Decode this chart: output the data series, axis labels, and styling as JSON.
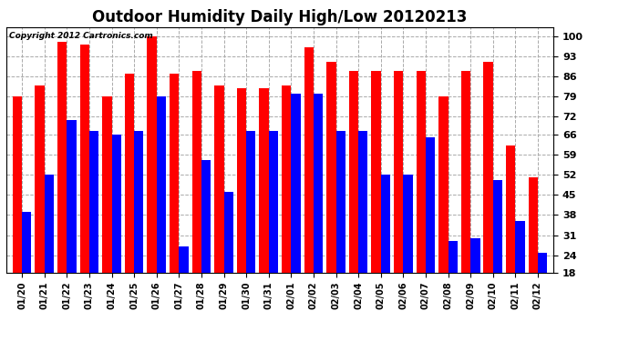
{
  "title": "Outdoor Humidity Daily High/Low 20120213",
  "copyright_text": "Copyright 2012 Cartronics.com",
  "categories": [
    "01/20",
    "01/21",
    "01/22",
    "01/23",
    "01/24",
    "01/25",
    "01/26",
    "01/27",
    "01/28",
    "01/29",
    "01/30",
    "01/31",
    "02/01",
    "02/02",
    "02/03",
    "02/04",
    "02/05",
    "02/06",
    "02/07",
    "02/08",
    "02/09",
    "02/10",
    "02/11",
    "02/12"
  ],
  "highs": [
    79,
    83,
    98,
    97,
    79,
    87,
    100,
    87,
    88,
    83,
    82,
    82,
    83,
    96,
    91,
    88,
    88,
    88,
    88,
    79,
    88,
    91,
    62,
    51
  ],
  "lows": [
    39,
    52,
    71,
    67,
    66,
    67,
    79,
    27,
    57,
    46,
    67,
    67,
    80,
    80,
    67,
    67,
    52,
    52,
    65,
    29,
    30,
    50,
    36,
    25
  ],
  "high_color": "#ff0000",
  "low_color": "#0000ff",
  "bg_color": "#ffffff",
  "grid_color": "#aaaaaa",
  "ylim_min": 18,
  "ylim_max": 103,
  "yticks": [
    18,
    24,
    31,
    38,
    45,
    52,
    59,
    66,
    72,
    79,
    86,
    93,
    100
  ],
  "bar_width": 0.42,
  "title_fontsize": 12,
  "tick_fontsize": 7,
  "ytick_fontsize": 8
}
